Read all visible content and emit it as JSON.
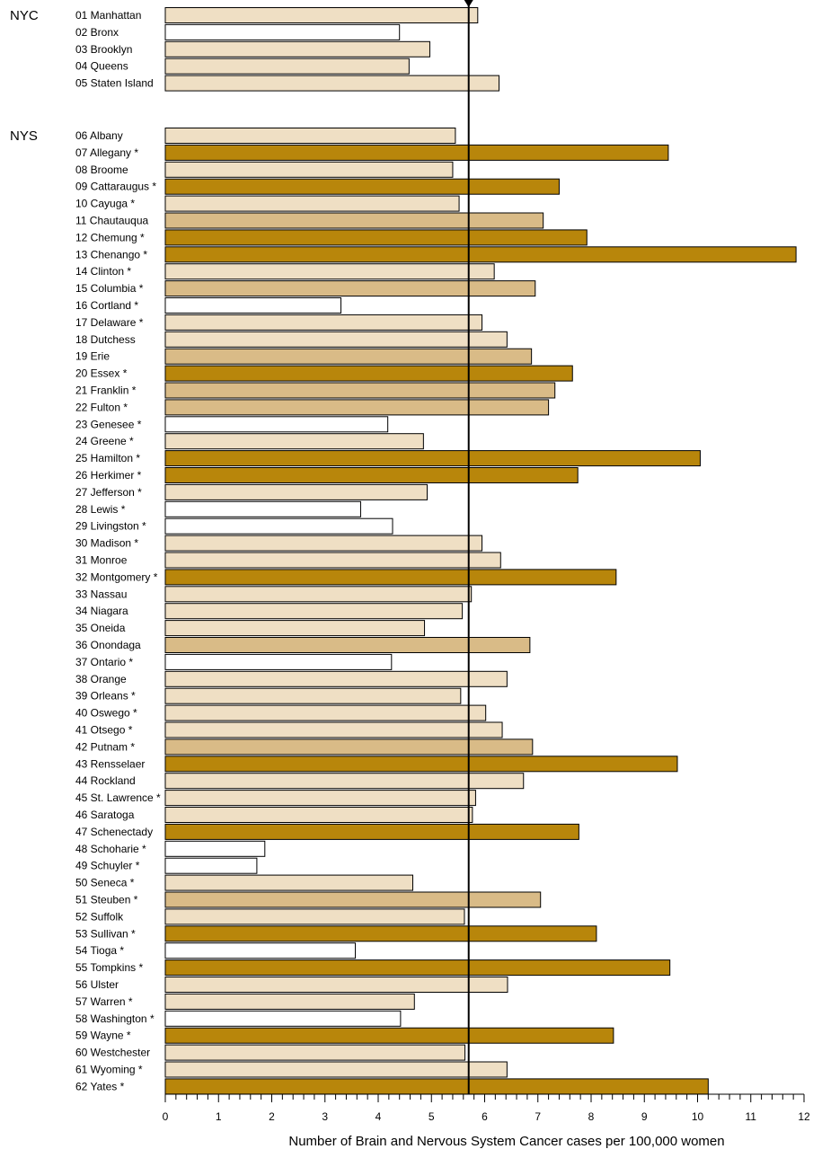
{
  "chart_data": {
    "type": "bar",
    "orientation": "horizontal",
    "xlabel": "Number of Brain and Nervous System Cancer cases per 100,000 women",
    "xlim": [
      0,
      12
    ],
    "xticks": [
      0,
      1,
      2,
      3,
      4,
      5,
      6,
      7,
      8,
      9,
      10,
      11,
      12
    ],
    "reference_line": 5.7,
    "colors": {
      "low": "#ffffff",
      "mid_low": "#efdfc4",
      "mid_high": "#d9bb87",
      "high": "#b8860b",
      "line": "#000000"
    },
    "groups": [
      {
        "name": "NYC",
        "bars": [
          {
            "label": "01 Manhattan",
            "value": 5.87,
            "level": "mid_low"
          },
          {
            "label": "02 Bronx",
            "value": 4.4,
            "level": "low"
          },
          {
            "label": "03 Brooklyn",
            "value": 4.97,
            "level": "mid_low"
          },
          {
            "label": "04 Queens",
            "value": 4.58,
            "level": "mid_low"
          },
          {
            "label": "05 Staten Island",
            "value": 6.27,
            "level": "mid_low"
          }
        ]
      },
      {
        "name": "NYS",
        "bars": [
          {
            "label": "06 Albany",
            "value": 5.45,
            "level": "mid_low"
          },
          {
            "label": "07 Allegany *",
            "value": 9.45,
            "level": "high"
          },
          {
            "label": "08 Broome",
            "value": 5.4,
            "level": "mid_low"
          },
          {
            "label": "09 Cattaraugus *",
            "value": 7.4,
            "level": "high"
          },
          {
            "label": "10 Cayuga *",
            "value": 5.52,
            "level": "mid_low"
          },
          {
            "label": "11 Chautauqua",
            "value": 7.1,
            "level": "mid_high"
          },
          {
            "label": "12 Chemung *",
            "value": 7.92,
            "level": "high"
          },
          {
            "label": "13 Chenango *",
            "value": 11.85,
            "level": "high"
          },
          {
            "label": "14 Clinton *",
            "value": 6.18,
            "level": "mid_low"
          },
          {
            "label": "15 Columbia *",
            "value": 6.95,
            "level": "mid_high"
          },
          {
            "label": "16 Cortland *",
            "value": 3.3,
            "level": "low"
          },
          {
            "label": "17 Delaware *",
            "value": 5.95,
            "level": "mid_low"
          },
          {
            "label": "18 Dutchess",
            "value": 6.42,
            "level": "mid_low"
          },
          {
            "label": "19 Erie",
            "value": 6.88,
            "level": "mid_high"
          },
          {
            "label": "20 Essex *",
            "value": 7.65,
            "level": "high"
          },
          {
            "label": "21 Franklin *",
            "value": 7.32,
            "level": "mid_high"
          },
          {
            "label": "22 Fulton *",
            "value": 7.2,
            "level": "mid_high"
          },
          {
            "label": "23 Genesee *",
            "value": 4.18,
            "level": "low"
          },
          {
            "label": "24 Greene *",
            "value": 4.85,
            "level": "mid_low"
          },
          {
            "label": "25 Hamilton *",
            "value": 10.05,
            "level": "high"
          },
          {
            "label": "26 Herkimer *",
            "value": 7.75,
            "level": "high"
          },
          {
            "label": "27 Jefferson *",
            "value": 4.92,
            "level": "mid_low"
          },
          {
            "label": "28 Lewis *",
            "value": 3.67,
            "level": "low"
          },
          {
            "label": "29 Livingston *",
            "value": 4.27,
            "level": "low"
          },
          {
            "label": "30 Madison *",
            "value": 5.95,
            "level": "mid_low"
          },
          {
            "label": "31 Monroe",
            "value": 6.3,
            "level": "mid_low"
          },
          {
            "label": "32 Montgomery *",
            "value": 8.47,
            "level": "high"
          },
          {
            "label": "33 Nassau",
            "value": 5.75,
            "level": "mid_low"
          },
          {
            "label": "34 Niagara",
            "value": 5.58,
            "level": "mid_low"
          },
          {
            "label": "35 Oneida",
            "value": 4.87,
            "level": "mid_low"
          },
          {
            "label": "36 Onondaga",
            "value": 6.85,
            "level": "mid_high"
          },
          {
            "label": "37 Ontario *",
            "value": 4.25,
            "level": "low"
          },
          {
            "label": "38 Orange",
            "value": 6.42,
            "level": "mid_low"
          },
          {
            "label": "39 Orleans *",
            "value": 5.55,
            "level": "mid_low"
          },
          {
            "label": "40 Oswego *",
            "value": 6.02,
            "level": "mid_low"
          },
          {
            "label": "41 Otsego *",
            "value": 6.33,
            "level": "mid_low"
          },
          {
            "label": "42 Putnam *",
            "value": 6.9,
            "level": "mid_high"
          },
          {
            "label": "43 Rensselaer",
            "value": 9.62,
            "level": "high"
          },
          {
            "label": "44 Rockland",
            "value": 6.73,
            "level": "mid_low"
          },
          {
            "label": "45 St. Lawrence *",
            "value": 5.83,
            "level": "mid_low"
          },
          {
            "label": "46 Saratoga",
            "value": 5.77,
            "level": "mid_low"
          },
          {
            "label": "47 Schenectady",
            "value": 7.77,
            "level": "high"
          },
          {
            "label": "48 Schoharie *",
            "value": 1.87,
            "level": "low"
          },
          {
            "label": "49 Schuyler *",
            "value": 1.72,
            "level": "low"
          },
          {
            "label": "50 Seneca *",
            "value": 4.65,
            "level": "mid_low"
          },
          {
            "label": "51 Steuben *",
            "value": 7.05,
            "level": "mid_high"
          },
          {
            "label": "52 Suffolk",
            "value": 5.62,
            "level": "mid_low"
          },
          {
            "label": "53 Sullivan *",
            "value": 8.1,
            "level": "high"
          },
          {
            "label": "54 Tioga *",
            "value": 3.57,
            "level": "low"
          },
          {
            "label": "55 Tompkins *",
            "value": 9.48,
            "level": "high"
          },
          {
            "label": "56 Ulster",
            "value": 6.43,
            "level": "mid_low"
          },
          {
            "label": "57 Warren *",
            "value": 4.68,
            "level": "mid_low"
          },
          {
            "label": "58 Washington *",
            "value": 4.42,
            "level": "low"
          },
          {
            "label": "59 Wayne *",
            "value": 8.42,
            "level": "high"
          },
          {
            "label": "60 Westchester",
            "value": 5.63,
            "level": "mid_low"
          },
          {
            "label": "61 Wyoming *",
            "value": 6.42,
            "level": "mid_low"
          },
          {
            "label": "62 Yates *",
            "value": 10.2,
            "level": "high"
          }
        ]
      }
    ]
  }
}
